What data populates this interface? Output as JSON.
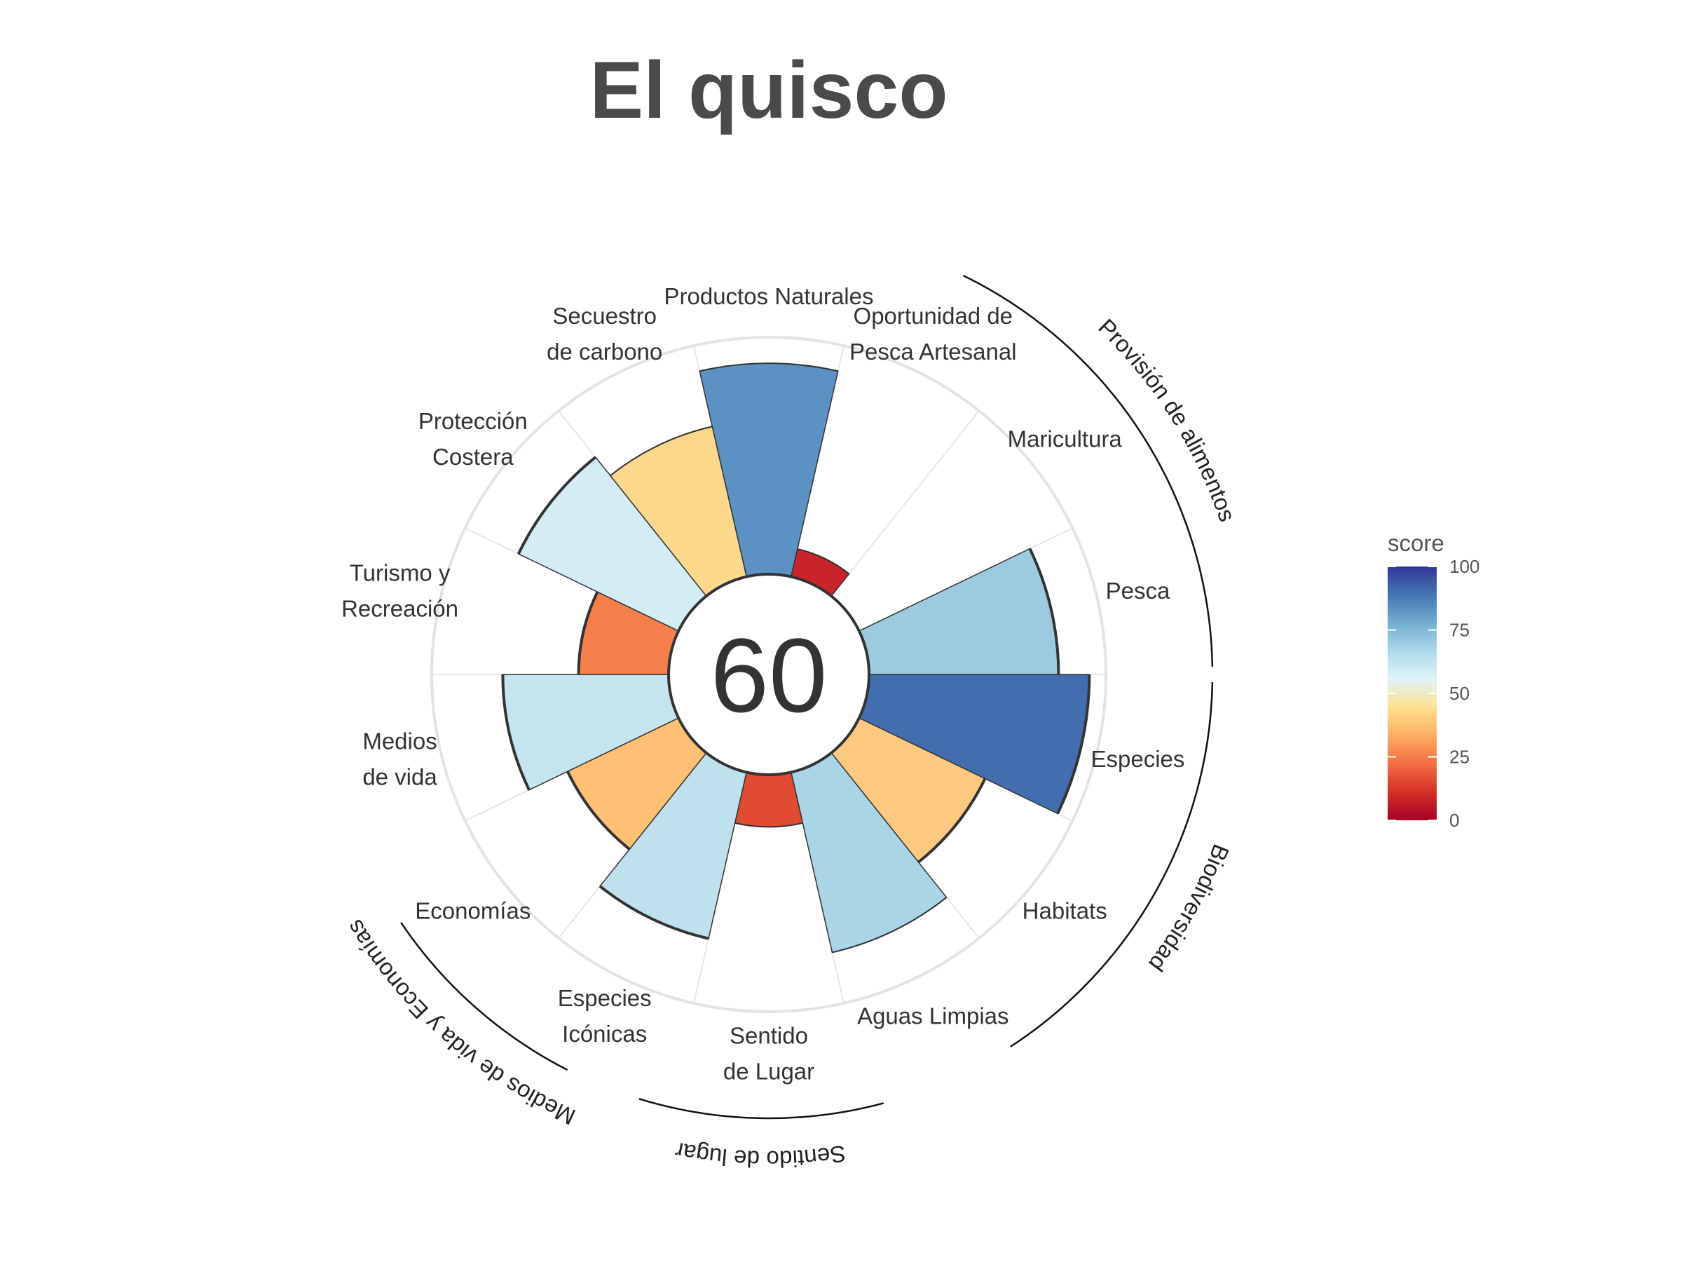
{
  "title": "El quisco",
  "center_score": "60",
  "legend": {
    "title": "score",
    "ticks": [
      "100",
      "75",
      "50",
      "25",
      "0"
    ],
    "colors": [
      "#a50026",
      "#d73027",
      "#f46d43",
      "#fdae61",
      "#fee090",
      "#e0f3f8",
      "#abd9e9",
      "#74add1",
      "#4575b4",
      "#313695"
    ]
  },
  "chart_data": {
    "type": "polar-bar",
    "max": 100,
    "categories": [
      {
        "label": [
          "Productos Naturales"
        ],
        "value": 89,
        "color": "#5b91c3",
        "bold": false
      },
      {
        "label": [
          "Oportunidad de",
          "Pesca Artesanal"
        ],
        "value": 12,
        "color": "#c9242b",
        "bold": false
      },
      {
        "label": [
          "Maricultura"
        ],
        "value": 0,
        "color": "#ffffff",
        "bold": false
      },
      {
        "label": [
          "Pesca"
        ],
        "value": 80,
        "color": "#9ccbe0",
        "bold": true
      },
      {
        "label": [
          "Especies"
        ],
        "value": 93,
        "color": "#426eb0",
        "bold": true
      },
      {
        "label": [
          "Habitats"
        ],
        "value": 59,
        "color": "#fdc980",
        "bold": true
      },
      {
        "label": [
          "Aguas Limpias"
        ],
        "value": 78,
        "color": "#a9d5e6",
        "bold": false
      },
      {
        "label": [
          "Sentido",
          "de Lugar"
        ],
        "value": 22,
        "color": "#e14b32",
        "bold": false
      },
      {
        "label": [
          "Especies",
          "Icónicas"
        ],
        "value": 72,
        "color": "#bfe1ee",
        "bold": true
      },
      {
        "label": [
          "Economías"
        ],
        "value": 52,
        "color": "#fdc074",
        "bold": true
      },
      {
        "label": [
          "Medios",
          "de vida"
        ],
        "value": 70,
        "color": "#c4e4ef",
        "bold": true
      },
      {
        "label": [
          "Turismo y",
          "Recreación"
        ],
        "value": 38,
        "color": "#f57f4a",
        "bold": true
      },
      {
        "label": [
          "Protección",
          "Costera"
        ],
        "value": 75,
        "color": "#d4ecf4",
        "bold": true
      },
      {
        "label": [
          "Secuestro",
          "de carbono"
        ],
        "value": 65,
        "color": "#fcd88c",
        "bold": false
      }
    ],
    "groups": [
      {
        "label": "Provisión de alimentos"
      },
      {
        "label": "Biodiversidad"
      },
      {
        "label": "Sentido de lugar"
      },
      {
        "label": "Medios de vida y Economías"
      }
    ]
  }
}
